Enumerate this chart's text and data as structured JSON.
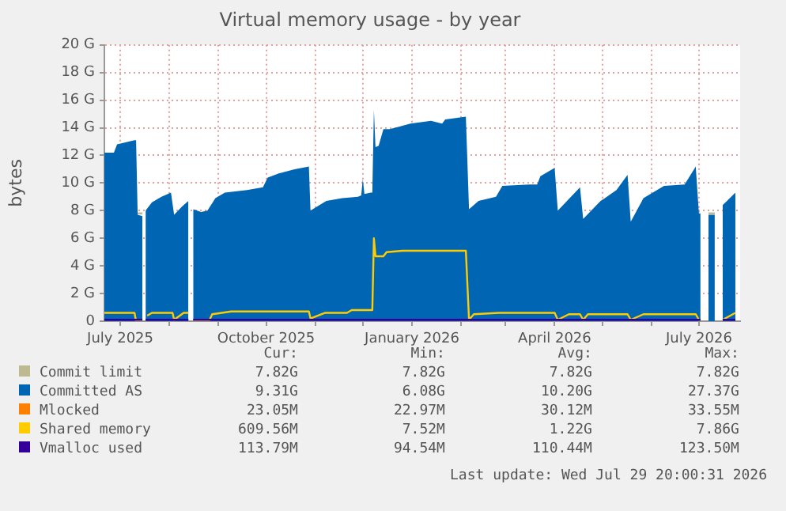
{
  "chart_data": {
    "type": "line",
    "title": "Virtual memory usage - by year",
    "ylabel": "bytes",
    "xlim": [
      "2025-06-21",
      "2026-07-27"
    ],
    "xticks": [
      {
        "value": "2025-07-01",
        "label": "July 2025"
      },
      {
        "value": "2025-08-01",
        "label": null
      },
      {
        "value": "2025-09-01",
        "label": null
      },
      {
        "value": "2025-10-01",
        "label": "October 2025"
      },
      {
        "value": "2025-11-01",
        "label": null
      },
      {
        "value": "2025-12-01",
        "label": null
      },
      {
        "value": "2026-01-01",
        "label": "January 2026"
      },
      {
        "value": "2026-02-01",
        "label": null
      },
      {
        "value": "2026-03-01",
        "label": null
      },
      {
        "value": "2026-04-01",
        "label": "April 2026"
      },
      {
        "value": "2026-05-01",
        "label": null
      },
      {
        "value": "2026-06-01",
        "label": null
      },
      {
        "value": "2026-07-01",
        "label": "July 2026"
      }
    ],
    "ylim": [
      0,
      20
    ],
    "yticks": [
      0,
      {
        "value": 2,
        "label": "2 G"
      },
      {
        "value": 4,
        "label": "4 G"
      },
      {
        "value": 6,
        "label": "6 G"
      },
      {
        "value": 8,
        "label": "8 G"
      },
      {
        "value": 10,
        "label": "10 G"
      },
      {
        "value": 12,
        "label": "12 G"
      },
      {
        "value": 14,
        "label": "14 G"
      },
      {
        "value": 16,
        "label": "16 G"
      },
      {
        "value": 18,
        "label": "18 G"
      },
      {
        "value": 20,
        "label": "20 G"
      }
    ],
    "grid": true,
    "legend": "bottom",
    "series": [
      {
        "name": "Commit limit",
        "color": "#bdb991",
        "type": "line",
        "x": [
          "2025-07-12",
          "2025-07-15",
          "2025-07-16",
          "2026-07-07",
          "2026-07-11"
        ],
        "values": [
          7.8,
          7.8,
          null,
          7.8,
          7.8
        ]
      },
      {
        "name": "Committed AS",
        "color": "#0066b3",
        "type": "area",
        "x": [
          "2025-06-21",
          "2025-06-27",
          "2025-06-29",
          "2025-07-10",
          "2025-07-11",
          "2025-07-12",
          "2025-07-15",
          "2025-07-16",
          "2025-07-17",
          "2025-07-21",
          "2025-07-27",
          "2025-08-02",
          "2025-08-04",
          "2025-08-09",
          "2025-08-13",
          "2025-08-14",
          "2025-08-16",
          "2025-08-21",
          "2025-08-25",
          "2025-08-30",
          "2025-09-05",
          "2025-09-19",
          "2025-09-29",
          "2025-10-02",
          "2025-10-09",
          "2025-10-19",
          "2025-10-28",
          "2025-10-29",
          "2025-11-08",
          "2025-11-18",
          "2025-11-28",
          "2025-11-30",
          "2025-12-01",
          "2025-12-02",
          "2025-12-06",
          "2025-12-07",
          "2025-12-08",
          "2025-12-09",
          "2025-12-11",
          "2025-12-14",
          "2025-12-18",
          "2025-12-31",
          "2026-01-13",
          "2026-01-20",
          "2026-01-22",
          "2026-02-04",
          "2026-02-06",
          "2026-02-12",
          "2026-02-23",
          "2026-02-27",
          "2026-03-16",
          "2026-03-21",
          "2026-03-23",
          "2026-04-01",
          "2026-04-03",
          "2026-04-17",
          "2026-04-19",
          "2026-04-30",
          "2026-05-10",
          "2026-05-17",
          "2026-05-19",
          "2026-05-27",
          "2026-06-09",
          "2026-06-22",
          "2026-06-29",
          "2026-07-01",
          "2026-07-02",
          "2026-07-04",
          "2026-07-07",
          "2026-07-11",
          "2026-07-14",
          "2026-07-16",
          "2026-07-24"
        ],
        "values": [
          12.2,
          12.2,
          12.8,
          13.1,
          13.1,
          7.7,
          7.6,
          null,
          8.0,
          8.6,
          9.0,
          9.3,
          7.7,
          8.3,
          8.7,
          null,
          8.1,
          7.9,
          8.0,
          8.9,
          9.3,
          9.5,
          9.7,
          10.4,
          10.7,
          11.0,
          11.2,
          8.0,
          8.7,
          8.9,
          9.0,
          9.1,
          10.3,
          9.2,
          9.3,
          9.3,
          15.3,
          12.6,
          12.7,
          13.9,
          13.9,
          14.3,
          14.5,
          14.3,
          14.6,
          14.8,
          8.1,
          8.7,
          9.0,
          9.8,
          9.9,
          9.9,
          10.5,
          11.1,
          8.0,
          9.7,
          7.4,
          8.7,
          9.5,
          10.6,
          7.2,
          8.9,
          9.8,
          9.9,
          11.2,
          7.8,
          7.8,
          null,
          7.7,
          7.7,
          null,
          8.4,
          9.3
        ]
      },
      {
        "name": "Mlocked",
        "color": "#ff7f00",
        "type": "line"
      },
      {
        "name": "Shared memory",
        "color": "#ffcc00",
        "type": "line",
        "x": [
          "2025-06-21",
          "2025-07-10",
          "2025-07-11",
          "2025-07-15",
          "2025-07-16",
          "2025-07-18",
          "2025-07-21",
          "2025-08-03",
          "2025-08-04",
          "2025-08-10",
          "2025-08-13",
          "2025-08-14",
          "2025-08-16",
          "2025-08-26",
          "2025-08-28",
          "2025-09-09",
          "2025-10-28",
          "2025-10-29",
          "2025-11-07",
          "2025-11-21",
          "2025-11-24",
          "2025-12-07",
          "2025-12-08",
          "2025-12-09",
          "2025-12-14",
          "2025-12-16",
          "2025-12-26",
          "2026-02-04",
          "2026-02-06",
          "2026-02-09",
          "2026-02-25",
          "2026-04-01",
          "2026-04-03",
          "2026-04-10",
          "2026-04-17",
          "2026-04-19",
          "2026-04-22",
          "2026-05-17",
          "2026-05-19",
          "2026-05-27",
          "2026-06-29",
          "2026-07-01",
          "2026-07-02",
          "2026-07-04",
          "2026-07-16",
          "2026-07-24"
        ],
        "values": [
          0.6,
          0.6,
          0.0,
          0.0,
          null,
          0.4,
          0.6,
          0.6,
          0.1,
          0.6,
          0.6,
          null,
          0.0,
          0.0,
          0.5,
          0.7,
          0.7,
          0.2,
          0.6,
          0.6,
          0.8,
          0.8,
          6.0,
          4.7,
          4.7,
          5.0,
          5.1,
          5.1,
          0.1,
          0.5,
          0.6,
          0.6,
          0.1,
          0.5,
          0.5,
          0.1,
          0.5,
          0.5,
          0.1,
          0.5,
          0.5,
          0.1,
          0.1,
          null,
          0.1,
          0.6
        ]
      },
      {
        "name": "Vmalloc used",
        "color": "#330099",
        "type": "line",
        "x": [
          "2025-06-21",
          "2025-07-15",
          "2025-07-16",
          "2025-07-17",
          "2025-08-13",
          "2025-08-14",
          "2025-08-16",
          "2026-07-02",
          "2026-07-04",
          "2026-07-16",
          "2026-07-24"
        ],
        "values": [
          0.1,
          0.1,
          null,
          0.1,
          0.1,
          null,
          0.1,
          0.1,
          null,
          0.1,
          0.1
        ]
      }
    ],
    "annotations": [
      "Cur:",
      "Min:",
      "Avg:",
      "Max:",
      "7.82G",
      "7.82G",
      "7.82G",
      "7.82G",
      "9.31G",
      "6.08G",
      "10.20G",
      "27.37G",
      "23.05M",
      "22.97M",
      "30.12M",
      "33.55M",
      "609.56M",
      "7.52M",
      "1.22G",
      "7.86G",
      "113.79M",
      "94.54M",
      "110.44M",
      "123.50M",
      "Last update: Wed Jul 29 20:00:31 2026"
    ]
  }
}
